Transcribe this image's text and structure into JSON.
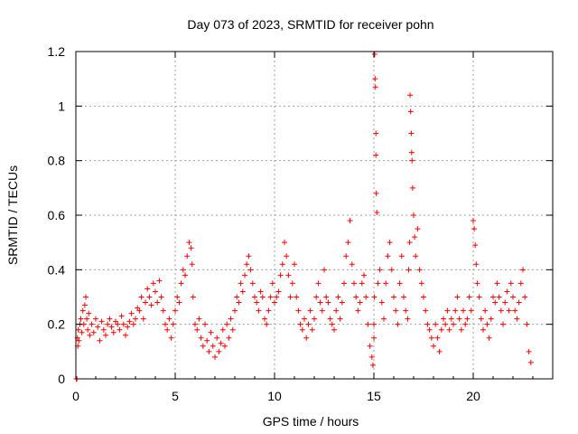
{
  "chart_data": {
    "type": "scatter",
    "title": "Day 073 of 2023, SRMTID for receiver pohn",
    "xlabel": "GPS time / hours",
    "ylabel": "SRMTID / TECUs",
    "xlim": [
      0,
      24
    ],
    "ylim": [
      0,
      1.2
    ],
    "xticks": [
      0,
      5,
      10,
      15,
      20
    ],
    "xtick_labels": [
      "0",
      "5",
      "10",
      "15",
      "20"
    ],
    "yticks": [
      0,
      0.2,
      0.4,
      0.6,
      0.8,
      1.0,
      1.2
    ],
    "ytick_labels": [
      "0",
      "0.2",
      "0.4",
      "0.6",
      "0.8",
      "1",
      "1.2"
    ],
    "grid": true,
    "marker": "+",
    "color": "#ff0000",
    "series": [
      {
        "name": "SRMTID",
        "x": [
          0.02,
          0.05,
          0.08,
          0.1,
          0.12,
          0.15,
          0.2,
          0.25,
          0.3,
          0.35,
          0.4,
          0.45,
          0.5,
          0.55,
          0.6,
          0.65,
          0.7,
          0.8,
          0.9,
          1.0,
          1.1,
          1.2,
          1.3,
          1.4,
          1.5,
          1.6,
          1.7,
          1.8,
          1.9,
          2.0,
          2.1,
          2.2,
          2.3,
          2.4,
          2.5,
          2.6,
          2.7,
          2.8,
          2.9,
          3.0,
          3.1,
          3.2,
          3.3,
          3.4,
          3.5,
          3.6,
          3.7,
          3.8,
          3.9,
          4.0,
          4.1,
          4.2,
          4.3,
          4.4,
          4.5,
          4.6,
          4.7,
          4.8,
          4.9,
          5.0,
          5.1,
          5.2,
          5.3,
          5.4,
          5.5,
          5.6,
          5.7,
          5.8,
          5.85,
          5.9,
          6.0,
          6.1,
          6.2,
          6.3,
          6.4,
          6.5,
          6.6,
          6.7,
          6.8,
          6.9,
          7.0,
          7.1,
          7.2,
          7.3,
          7.4,
          7.5,
          7.6,
          7.7,
          7.8,
          7.9,
          8.0,
          8.1,
          8.2,
          8.3,
          8.4,
          8.5,
          8.6,
          8.7,
          8.8,
          8.9,
          9.0,
          9.1,
          9.2,
          9.3,
          9.4,
          9.5,
          9.6,
          9.7,
          9.8,
          9.9,
          10.0,
          10.1,
          10.2,
          10.3,
          10.4,
          10.5,
          10.6,
          10.7,
          10.8,
          10.9,
          11.0,
          11.1,
          11.2,
          11.3,
          11.4,
          11.5,
          11.6,
          11.7,
          11.8,
          11.9,
          12.0,
          12.1,
          12.2,
          12.3,
          12.4,
          12.5,
          12.6,
          12.7,
          12.8,
          12.9,
          13.0,
          13.1,
          13.2,
          13.3,
          13.4,
          13.5,
          13.6,
          13.7,
          13.8,
          13.9,
          14.0,
          14.1,
          14.2,
          14.3,
          14.4,
          14.5,
          14.6,
          14.7,
          14.8,
          14.9,
          14.95,
          15.0,
          15.0,
          15.02,
          15.04,
          15.06,
          15.08,
          15.1,
          15.1,
          15.12,
          15.15,
          15.2,
          15.3,
          15.4,
          15.5,
          15.6,
          15.7,
          15.8,
          15.9,
          16.0,
          16.1,
          16.2,
          16.3,
          16.4,
          16.5,
          16.6,
          16.7,
          16.75,
          16.8,
          16.82,
          16.85,
          16.88,
          16.9,
          16.92,
          16.95,
          17.0,
          17.05,
          17.1,
          17.2,
          17.3,
          17.4,
          17.5,
          17.6,
          17.7,
          17.8,
          17.9,
          18.0,
          18.1,
          18.2,
          18.3,
          18.4,
          18.5,
          18.6,
          18.7,
          18.8,
          18.9,
          19.0,
          19.1,
          19.2,
          19.3,
          19.4,
          19.5,
          19.6,
          19.7,
          19.8,
          19.9,
          20.0,
          20.05,
          20.1,
          20.15,
          20.2,
          20.3,
          20.4,
          20.5,
          20.6,
          20.7,
          20.8,
          20.9,
          21.0,
          21.1,
          21.2,
          21.3,
          21.4,
          21.5,
          21.6,
          21.7,
          21.8,
          21.9,
          22.0,
          22.1,
          22.2,
          22.3,
          22.4,
          22.5,
          22.6,
          22.7,
          22.8,
          22.9
        ],
        "y": [
          0.0,
          0.0,
          0.15,
          0.12,
          0.18,
          0.14,
          0.2,
          0.22,
          0.17,
          0.25,
          0.2,
          0.27,
          0.3,
          0.22,
          0.18,
          0.24,
          0.16,
          0.2,
          0.17,
          0.22,
          0.19,
          0.14,
          0.21,
          0.18,
          0.16,
          0.2,
          0.22,
          0.19,
          0.17,
          0.21,
          0.2,
          0.18,
          0.23,
          0.2,
          0.16,
          0.19,
          0.21,
          0.24,
          0.2,
          0.22,
          0.26,
          0.25,
          0.3,
          0.22,
          0.28,
          0.33,
          0.3,
          0.27,
          0.35,
          0.32,
          0.28,
          0.36,
          0.3,
          0.25,
          0.2,
          0.18,
          0.22,
          0.15,
          0.2,
          0.25,
          0.3,
          0.28,
          0.35,
          0.4,
          0.38,
          0.45,
          0.5,
          0.48,
          0.42,
          0.3,
          0.2,
          0.18,
          0.22,
          0.15,
          0.12,
          0.2,
          0.14,
          0.1,
          0.17,
          0.12,
          0.08,
          0.15,
          0.1,
          0.13,
          0.18,
          0.12,
          0.2,
          0.15,
          0.22,
          0.18,
          0.25,
          0.3,
          0.28,
          0.35,
          0.32,
          0.38,
          0.42,
          0.45,
          0.4,
          0.35,
          0.3,
          0.28,
          0.25,
          0.32,
          0.3,
          0.22,
          0.2,
          0.25,
          0.3,
          0.35,
          0.28,
          0.3,
          0.32,
          0.38,
          0.42,
          0.5,
          0.45,
          0.38,
          0.3,
          0.35,
          0.42,
          0.3,
          0.25,
          0.2,
          0.18,
          0.22,
          0.15,
          0.2,
          0.25,
          0.18,
          0.22,
          0.3,
          0.35,
          0.28,
          0.25,
          0.4,
          0.3,
          0.28,
          0.22,
          0.2,
          0.18,
          0.25,
          0.3,
          0.22,
          0.28,
          0.35,
          0.45,
          0.5,
          0.58,
          0.42,
          0.35,
          0.3,
          0.25,
          0.28,
          0.35,
          0.38,
          0.3,
          0.2,
          0.12,
          0.08,
          0.05,
          0.15,
          0.2,
          0.3,
          1.19,
          1.1,
          1.07,
          0.9,
          0.82,
          0.68,
          0.61,
          0.35,
          0.4,
          0.28,
          0.22,
          0.35,
          0.45,
          0.5,
          0.4,
          0.3,
          0.25,
          0.2,
          0.35,
          0.45,
          0.3,
          0.25,
          0.22,
          0.4,
          0.5,
          1.04,
          0.98,
          0.9,
          0.83,
          0.8,
          0.7,
          0.6,
          0.52,
          0.45,
          0.55,
          0.4,
          0.35,
          0.3,
          0.25,
          0.2,
          0.18,
          0.15,
          0.12,
          0.2,
          0.15,
          0.1,
          0.18,
          0.22,
          0.2,
          0.25,
          0.18,
          0.22,
          0.2,
          0.25,
          0.3,
          0.22,
          0.18,
          0.25,
          0.2,
          0.22,
          0.3,
          0.25,
          0.58,
          0.55,
          0.49,
          0.42,
          0.35,
          0.3,
          0.22,
          0.18,
          0.25,
          0.2,
          0.15,
          0.22,
          0.3,
          0.28,
          0.35,
          0.3,
          0.25,
          0.2,
          0.28,
          0.32,
          0.25,
          0.35,
          0.3,
          0.25,
          0.22,
          0.28,
          0.35,
          0.4,
          0.3,
          0.2,
          0.1,
          0.06
        ]
      }
    ]
  }
}
